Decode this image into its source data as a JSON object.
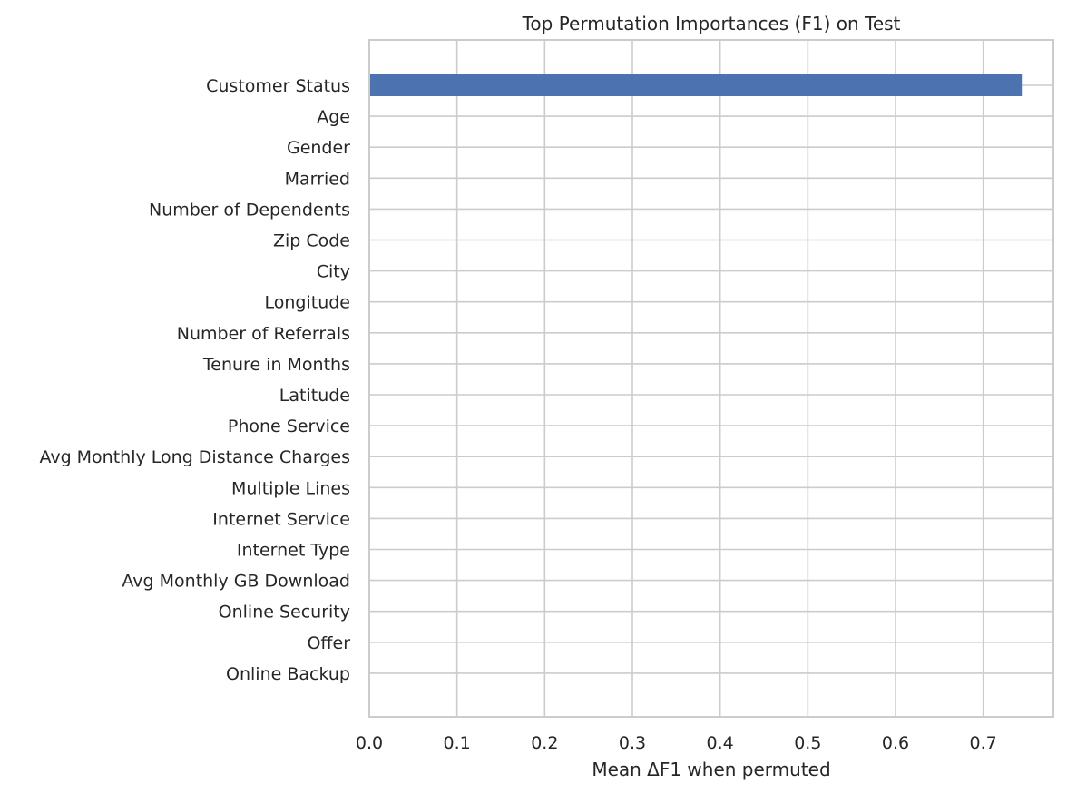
{
  "chart_data": {
    "type": "bar",
    "orientation": "horizontal",
    "title": "Top Permutation Importances (F1) on Test",
    "xlabel": "Mean ΔF1 when permuted",
    "ylabel": "",
    "xlim": [
      0,
      0.78
    ],
    "xticks": [
      "0.0",
      "0.1",
      "0.2",
      "0.3",
      "0.4",
      "0.5",
      "0.6",
      "0.7"
    ],
    "grid": true,
    "bar_color": "#4c72b0",
    "categories": [
      "Customer Status",
      "Age",
      "Gender",
      "Married",
      "Number of Dependents",
      "Zip Code",
      "City",
      "Longitude",
      "Number of Referrals",
      "Tenure in Months",
      "Latitude",
      "Phone Service",
      "Avg Monthly Long Distance Charges",
      "Multiple Lines",
      "Internet Service",
      "Internet Type",
      "Avg Monthly GB Download",
      "Online Security",
      "Offer",
      "Online Backup"
    ],
    "values": [
      0.744,
      0,
      0,
      0,
      0,
      0,
      0,
      0,
      0,
      0,
      0,
      0,
      0,
      0,
      0,
      0,
      0,
      0,
      0,
      0
    ]
  }
}
